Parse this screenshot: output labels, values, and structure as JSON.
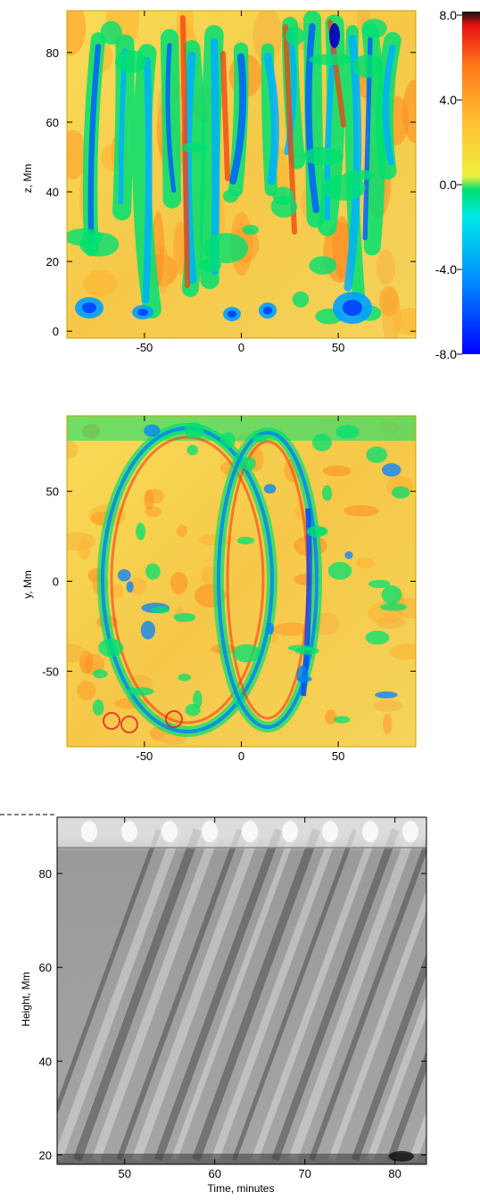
{
  "chart_data": [
    {
      "type": "heatmap",
      "title": "",
      "xlabel": "",
      "ylabel": "z, Mm",
      "ylim": [
        -2,
        92
      ],
      "xlim": [
        -90,
        90
      ],
      "y_ticks": [
        "0",
        "20",
        "40",
        "60",
        "80"
      ],
      "x_ticks": [
        "-50",
        "0",
        "50"
      ],
      "colormap": [
        "#0000ff",
        "#0090ff",
        "#00e8e8",
        "#00e070",
        "#f0f040",
        "#ffc030",
        "#ff7a1a",
        "#e81010",
        "#111111"
      ],
      "colorbar": {
        "ticks": [
          "8.0",
          "4.0",
          "0.0",
          "-4.0",
          "-8.0"
        ],
        "range": [
          -8,
          8
        ]
      }
    },
    {
      "type": "heatmap",
      "title": "",
      "xlabel": "",
      "ylabel": "y, Mm",
      "ylim": [
        -92,
        92
      ],
      "xlim": [
        -90,
        90
      ],
      "y_ticks": [
        "50",
        "0",
        "-50"
      ],
      "x_ticks": [
        "-50",
        "0",
        "50"
      ],
      "colormap": [
        "#0000ff",
        "#0090ff",
        "#00e8e8",
        "#00e070",
        "#f0f040",
        "#ffc030",
        "#ff7a1a",
        "#e81010"
      ]
    },
    {
      "type": "heatmap",
      "title": "",
      "xlabel": "Time, minutes",
      "ylabel": "Height, Mm",
      "xlim": [
        42.5,
        83.5
      ],
      "ylim": [
        18,
        92
      ],
      "x_ticks": [
        "50",
        "60",
        "70",
        "80"
      ],
      "y_ticks": [
        "20",
        "40",
        "60",
        "80"
      ],
      "colormap": [
        "#111111",
        "#7a7a7a",
        "#f2f2f2"
      ]
    }
  ]
}
